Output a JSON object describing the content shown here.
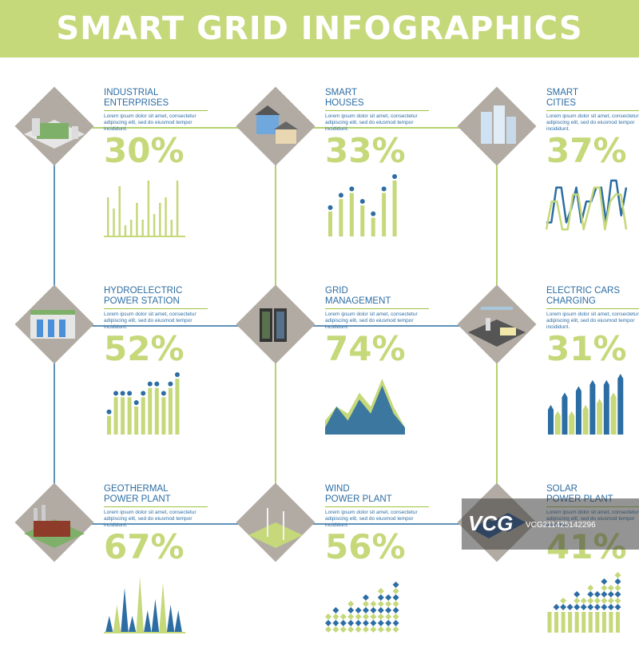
{
  "header": {
    "title": "SMART GRID INFOGRAPHICS"
  },
  "body_text": "Lorem ipsum dolor sit amet, consectetur adipiscing elit, sed do eiusmod tempor incididunt.",
  "watermark": {
    "logo": "VCG",
    "text": "VCG211425142296"
  },
  "colors": {
    "green": "#c5d87a",
    "dark_green": "#9cc43e",
    "blue": "#2c6da3",
    "diamond": "#b2aba3"
  },
  "chart_data": [
    {
      "type": "bar",
      "title_lines": [
        "INDUSTRIAL",
        "ENTERPRISES"
      ],
      "percent": "30%",
      "icon": "factory-icon",
      "style": "thin-bars",
      "series": [
        {
          "values": [
            7,
            5,
            9,
            2,
            3,
            6,
            3,
            10,
            4,
            6,
            7,
            3,
            10
          ]
        }
      ]
    },
    {
      "type": "bar",
      "title_lines": [
        "SMART",
        "HOUSES"
      ],
      "percent": "33%",
      "icon": "houses-icon",
      "style": "lollipop",
      "series": [
        {
          "values": [
            4,
            6,
            7,
            5,
            3,
            7,
            9
          ]
        }
      ]
    },
    {
      "type": "line",
      "title_lines": [
        "SMART",
        "CITIES"
      ],
      "percent": "37%",
      "icon": "city-icon",
      "style": "wave",
      "series": [
        {
          "values": [
            2,
            2,
            7,
            7,
            2,
            4,
            7,
            2,
            5,
            5,
            7,
            7,
            2,
            8,
            8,
            3,
            7
          ]
        },
        {
          "values": [
            1,
            5,
            5,
            1,
            1,
            6,
            6,
            1,
            4,
            7,
            7,
            1,
            5,
            6,
            6,
            1
          ]
        }
      ]
    },
    {
      "type": "bar",
      "title_lines": [
        "HYDROELECTRIC",
        "POWER STATION"
      ],
      "percent": "52%",
      "icon": "dam-icon",
      "style": "lollipop",
      "series": [
        {
          "values": [
            2,
            4,
            4,
            4,
            3,
            4,
            5,
            5,
            4,
            5,
            6
          ]
        }
      ]
    },
    {
      "type": "area",
      "title_lines": [
        "GRID",
        "MANAGEMENT"
      ],
      "percent": "74%",
      "icon": "server-icon",
      "style": "mountain",
      "series": [
        {
          "values": [
            2,
            4,
            3,
            6,
            4,
            8,
            4,
            1
          ]
        },
        {
          "values": [
            1,
            4,
            2,
            5,
            3,
            7,
            3,
            1
          ]
        }
      ]
    },
    {
      "type": "bar",
      "title_lines": [
        "ELECTRIC CARS",
        "CHARGING"
      ],
      "percent": "31%",
      "icon": "charging-icon",
      "style": "arrow-bars",
      "series": [
        {
          "values": [
            4,
            3,
            6,
            3,
            7,
            4,
            8,
            5,
            8,
            6,
            9
          ]
        }
      ]
    },
    {
      "type": "bar",
      "title_lines": [
        "GEOTHERMAL",
        "POWER PLANT"
      ],
      "percent": "67%",
      "icon": "geothermal-icon",
      "style": "spikes",
      "series": [
        {
          "values": [
            3,
            5,
            8,
            3,
            10,
            4,
            6,
            9,
            5,
            4
          ]
        }
      ]
    },
    {
      "type": "scatter",
      "title_lines": [
        "WIND",
        "POWER PLANT"
      ],
      "percent": "56%",
      "icon": "wind-icon",
      "style": "diamonds",
      "series": [
        {
          "values": [
            3,
            4,
            3,
            5,
            4,
            6,
            5,
            7,
            6,
            8
          ]
        }
      ]
    },
    {
      "type": "scatter",
      "title_lines": [
        "SOLAR",
        "POWER PLANT"
      ],
      "percent": "41%",
      "icon": "solar-icon",
      "style": "diamond-stacks",
      "series": [
        {
          "values": [
            3,
            4,
            5,
            4,
            6,
            5,
            7,
            6,
            8,
            7,
            9
          ]
        }
      ]
    }
  ]
}
